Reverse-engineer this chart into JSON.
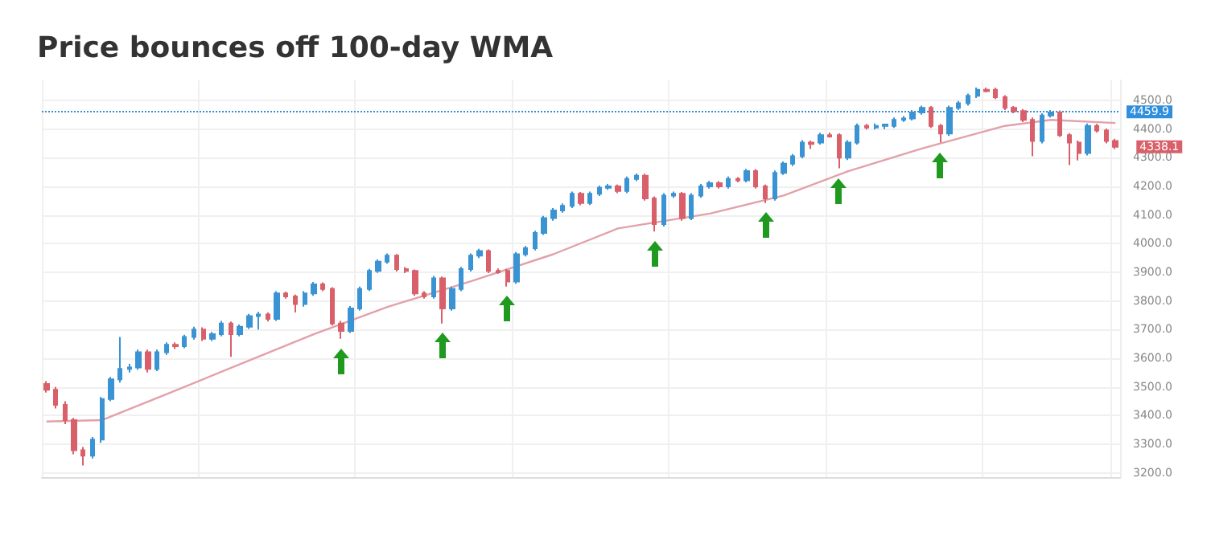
{
  "chart_data": {
    "type": "candlestick",
    "title": "Price bounces off 100-day WMA",
    "categories": [
      null,
      null,
      null,
      null,
      null,
      null,
      null,
      null,
      null,
      null,
      null,
      null,
      null,
      null,
      null,
      null,
      null,
      null,
      null,
      null,
      null,
      null,
      null,
      null,
      null,
      null,
      null,
      null,
      null,
      null,
      null,
      null,
      null,
      null,
      null,
      null,
      null,
      null,
      null,
      null,
      null,
      null,
      null,
      null,
      null,
      null,
      null,
      null,
      null,
      null,
      null,
      null,
      null,
      null,
      null,
      null,
      null,
      null,
      null,
      null,
      null,
      null,
      null,
      null,
      null,
      null,
      null,
      null,
      null,
      null,
      null,
      null,
      null,
      null,
      null,
      null,
      null,
      null,
      null,
      null,
      null,
      null,
      null,
      null,
      null,
      null,
      null,
      null,
      null,
      null,
      null,
      null,
      null,
      null,
      null,
      null,
      null,
      null,
      null,
      null,
      null,
      null,
      null,
      null,
      null,
      null,
      null,
      null,
      null,
      null,
      null,
      null,
      null,
      null,
      null,
      null,
      null
    ],
    "ohlc": [
      [
        3510,
        3520,
        3480,
        3490
      ],
      [
        3490,
        3500,
        3425,
        3437
      ],
      [
        3437,
        3450,
        3370,
        3384
      ],
      [
        3384,
        3392,
        3265,
        3279
      ],
      [
        3279,
        3290,
        3226,
        3260
      ],
      [
        3260,
        3325,
        3250,
        3316
      ],
      [
        3316,
        3465,
        3305,
        3458
      ],
      [
        3458,
        3535,
        3450,
        3526
      ],
      [
        3526,
        3674,
        3515,
        3563
      ],
      [
        3563,
        3580,
        3550,
        3568
      ],
      [
        3568,
        3630,
        3560,
        3621
      ],
      [
        3621,
        3630,
        3550,
        3563
      ],
      [
        3563,
        3630,
        3555,
        3621
      ],
      [
        3621,
        3655,
        3612,
        3647
      ],
      [
        3647,
        3655,
        3632,
        3642
      ],
      [
        3642,
        3682,
        3635,
        3674
      ],
      [
        3674,
        3710,
        3665,
        3700
      ],
      [
        3700,
        3708,
        3660,
        3668
      ],
      [
        3668,
        3692,
        3660,
        3684
      ],
      [
        3684,
        3730,
        3676,
        3721
      ],
      [
        3721,
        3728,
        3605,
        3684
      ],
      [
        3684,
        3718,
        3676,
        3710
      ],
      [
        3710,
        3755,
        3702,
        3747
      ],
      [
        3747,
        3762,
        3700,
        3753
      ],
      [
        3753,
        3760,
        3728,
        3737
      ],
      [
        3737,
        3834,
        3730,
        3826
      ],
      [
        3826,
        3832,
        3808,
        3816
      ],
      [
        3816,
        3822,
        3760,
        3789
      ],
      [
        3789,
        3834,
        3780,
        3826
      ],
      [
        3826,
        3866,
        3818,
        3858
      ],
      [
        3858,
        3865,
        3834,
        3842
      ],
      [
        3842,
        3848,
        3714,
        3721
      ],
      [
        3721,
        3730,
        3668,
        3695
      ],
      [
        3695,
        3782,
        3688,
        3774
      ],
      [
        3774,
        3850,
        3766,
        3842
      ],
      [
        3842,
        3912,
        3835,
        3905
      ],
      [
        3905,
        3945,
        3898,
        3937
      ],
      [
        3937,
        3966,
        3930,
        3958
      ],
      [
        3958,
        3964,
        3903,
        3911
      ],
      [
        3911,
        3918,
        3897,
        3905
      ],
      [
        3905,
        3910,
        3818,
        3826
      ],
      [
        3826,
        3834,
        3808,
        3816
      ],
      [
        3816,
        3887,
        3808,
        3879
      ],
      [
        3879,
        3885,
        3721,
        3774
      ],
      [
        3774,
        3850,
        3766,
        3842
      ],
      [
        3842,
        3919,
        3834,
        3911
      ],
      [
        3911,
        3966,
        3903,
        3958
      ],
      [
        3958,
        3982,
        3950,
        3974
      ],
      [
        3974,
        3980,
        3897,
        3905
      ],
      [
        3905,
        3913,
        3895,
        3900
      ],
      [
        3905,
        3912,
        3850,
        3868
      ],
      [
        3868,
        3971,
        3860,
        3963
      ],
      [
        3963,
        3992,
        3955,
        3984
      ],
      [
        3984,
        4045,
        3976,
        4037
      ],
      [
        4037,
        4097,
        4030,
        4089
      ],
      [
        4089,
        4124,
        4080,
        4116
      ],
      [
        4116,
        4140,
        4108,
        4132
      ],
      [
        4132,
        4182,
        4124,
        4174
      ],
      [
        4174,
        4180,
        4134,
        4142
      ],
      [
        4142,
        4182,
        4135,
        4174
      ],
      [
        4174,
        4203,
        4166,
        4195
      ],
      [
        4195,
        4208,
        4188,
        4200
      ],
      [
        4200,
        4206,
        4176,
        4184
      ],
      [
        4184,
        4234,
        4176,
        4226
      ],
      [
        4226,
        4245,
        4218,
        4237
      ],
      [
        4237,
        4244,
        4150,
        4158
      ],
      [
        4158,
        4165,
        4042,
        4068
      ],
      [
        4068,
        4176,
        4060,
        4168
      ],
      [
        4168,
        4182,
        4160,
        4174
      ],
      [
        4174,
        4180,
        4080,
        4089
      ],
      [
        4089,
        4176,
        4082,
        4168
      ],
      [
        4168,
        4208,
        4160,
        4200
      ],
      [
        4200,
        4219,
        4192,
        4211
      ],
      [
        4211,
        4218,
        4192,
        4200
      ],
      [
        4200,
        4234,
        4192,
        4226
      ],
      [
        4226,
        4232,
        4214,
        4221
      ],
      [
        4221,
        4261,
        4214,
        4253
      ],
      [
        4253,
        4260,
        4192,
        4200
      ],
      [
        4200,
        4206,
        4142,
        4158
      ],
      [
        4158,
        4255,
        4150,
        4247
      ],
      [
        4247,
        4287,
        4240,
        4279
      ],
      [
        4279,
        4313,
        4271,
        4305
      ],
      [
        4305,
        4361,
        4298,
        4353
      ],
      [
        4353,
        4360,
        4330,
        4348
      ],
      [
        4353,
        4387,
        4346,
        4379
      ],
      [
        4379,
        4388,
        4370,
        4374
      ],
      [
        4379,
        4385,
        4263,
        4300
      ],
      [
        4300,
        4361,
        4292,
        4353
      ],
      [
        4353,
        4419,
        4346,
        4411
      ],
      [
        4411,
        4418,
        4398,
        4405
      ],
      [
        4405,
        4419,
        4398,
        4411
      ],
      [
        4411,
        4418,
        4400,
        4416
      ],
      [
        4411,
        4440,
        4404,
        4432
      ],
      [
        4432,
        4445,
        4425,
        4437
      ],
      [
        4437,
        4466,
        4430,
        4458
      ],
      [
        4458,
        4482,
        4450,
        4474
      ],
      [
        4474,
        4480,
        4404,
        4411
      ],
      [
        4411,
        4418,
        4353,
        4384
      ],
      [
        4384,
        4482,
        4376,
        4474
      ],
      [
        4474,
        4498,
        4466,
        4490
      ],
      [
        4490,
        4524,
        4482,
        4516
      ],
      [
        4516,
        4545,
        4508,
        4537
      ],
      [
        4537,
        4545,
        4528,
        4532
      ],
      [
        4537,
        4544,
        4504,
        4511
      ],
      [
        4511,
        4518,
        4466,
        4474
      ],
      [
        4474,
        4480,
        4455,
        4463
      ],
      [
        4463,
        4470,
        4424,
        4432
      ],
      [
        4432,
        4440,
        4305,
        4358
      ],
      [
        4358,
        4455,
        4350,
        4447
      ],
      [
        4447,
        4466,
        4440,
        4458
      ],
      [
        4458,
        4465,
        4372,
        4379
      ],
      [
        4379,
        4386,
        4274,
        4353
      ],
      [
        4353,
        4360,
        4290,
        4316
      ],
      [
        4316,
        4419,
        4308,
        4411
      ],
      [
        4411,
        4418,
        4388,
        4395
      ],
      [
        4395,
        4402,
        4350,
        4358
      ],
      [
        4358,
        4366,
        4330,
        4338.1
      ]
    ],
    "colors": [
      "#d9606a",
      "#d9606a",
      "#d9606a",
      "#d9606a",
      "#d9606a",
      "#3a93d3",
      "#3a93d3",
      "#3a93d3",
      "#3a93d3",
      "#3a93d3",
      "#3a93d3",
      "#d9606a",
      "#3a93d3",
      "#3a93d3",
      "#d9606a",
      "#3a93d3",
      "#3a93d3",
      "#d9606a",
      "#3a93d3",
      "#3a93d3",
      "#d9606a",
      "#3a93d3",
      "#3a93d3",
      "#3a93d3",
      "#d9606a",
      "#3a93d3",
      "#d9606a",
      "#d9606a",
      "#3a93d3",
      "#3a93d3",
      "#d9606a",
      "#d9606a",
      "#d9606a",
      "#3a93d3",
      "#3a93d3",
      "#3a93d3",
      "#3a93d3",
      "#3a93d3",
      "#d9606a",
      "#d9606a",
      "#d9606a",
      "#d9606a",
      "#3a93d3",
      "#d9606a",
      "#3a93d3",
      "#3a93d3",
      "#3a93d3",
      "#3a93d3",
      "#d9606a",
      "#d9606a",
      "#d9606a",
      "#3a93d3",
      "#3a93d3",
      "#3a93d3",
      "#3a93d3",
      "#3a93d3",
      "#3a93d3",
      "#3a93d3",
      "#d9606a",
      "#3a93d3",
      "#3a93d3",
      "#3a93d3",
      "#d9606a",
      "#3a93d3",
      "#3a93d3",
      "#d9606a",
      "#d9606a",
      "#3a93d3",
      "#3a93d3",
      "#d9606a",
      "#3a93d3",
      "#3a93d3",
      "#3a93d3",
      "#d9606a",
      "#3a93d3",
      "#d9606a",
      "#3a93d3",
      "#d9606a",
      "#d9606a",
      "#3a93d3",
      "#3a93d3",
      "#3a93d3",
      "#3a93d3",
      "#d9606a",
      "#3a93d3",
      "#d9606a",
      "#d9606a",
      "#3a93d3",
      "#3a93d3",
      "#d9606a",
      "#3a93d3",
      "#3a93d3",
      "#3a93d3",
      "#3a93d3",
      "#3a93d3",
      "#3a93d3",
      "#d9606a",
      "#d9606a",
      "#3a93d3",
      "#3a93d3",
      "#3a93d3",
      "#3a93d3",
      "#d9606a",
      "#d9606a",
      "#d9606a",
      "#d9606a",
      "#d9606a",
      "#d9606a",
      "#3a93d3",
      "#3a93d3",
      "#d9606a",
      "#d9606a",
      "#d9606a",
      "#3a93d3",
      "#d9606a",
      "#d9606a",
      "#d9606a"
    ],
    "series": [
      {
        "type": "line",
        "color": "#e3a1a8",
        "values": [
          3379,
          null,
          null,
          null,
          null,
          null,
          3384,
          null,
          null,
          null,
          null,
          null,
          null,
          3474,
          null,
          null,
          null,
          null,
          null,
          null,
          null,
          3579,
          null,
          null,
          null,
          null,
          null,
          null,
          null,
          3684,
          null,
          null,
          null,
          null,
          null,
          null,
          null,
          3779,
          null,
          null,
          null,
          null,
          null,
          null,
          null,
          null,
          3868,
          null,
          null,
          null,
          null,
          null,
          null,
          null,
          null,
          3963,
          null,
          null,
          null,
          null,
          null,
          null,
          4053,
          null,
          null,
          null,
          null,
          null,
          null,
          null,
          null,
          null,
          4105,
          null,
          null,
          null,
          null,
          null,
          null,
          null,
          4168,
          null,
          null,
          null,
          null,
          null,
          null,
          4253,
          null,
          null,
          null,
          null,
          null,
          null,
          null,
          4332,
          null,
          null,
          null,
          null,
          null,
          null,
          null,
          null,
          4411,
          null,
          null,
          null,
          null,
          4432,
          null,
          null,
          null,
          null,
          null,
          null,
          4421
        ]
      }
    ],
    "ylim": [
      3185,
      4570
    ],
    "yticks": [
      {
        "value": 3200,
        "label": "3200.0"
      },
      {
        "value": 3300,
        "label": "3300.0"
      },
      {
        "value": 3400,
        "label": "3400.0"
      },
      {
        "value": 3500,
        "label": "3500.0"
      },
      {
        "value": 3600,
        "label": "3600.0"
      },
      {
        "value": 3700,
        "label": "3700.0"
      },
      {
        "value": 3800,
        "label": "3800.0"
      },
      {
        "value": 3900,
        "label": "3900.0"
      },
      {
        "value": 4000,
        "label": "4000.0"
      },
      {
        "value": 4100,
        "label": "4100.0"
      },
      {
        "value": 4200,
        "label": "4200.0"
      },
      {
        "value": 4300,
        "label": "4300.0"
      },
      {
        "value": 4400,
        "label": "4400.0"
      },
      {
        "value": 4500,
        "label": "4500.0"
      }
    ],
    "ref_lines": [
      {
        "axis": "y",
        "value": 4459.9,
        "label": "4459.9",
        "color": "#2f8fdc",
        "line_style": "dotted"
      }
    ],
    "annotations": [
      "4338.1"
    ],
    "grid": true,
    "tick_labels": "y",
    "line_style": "solid"
  }
}
